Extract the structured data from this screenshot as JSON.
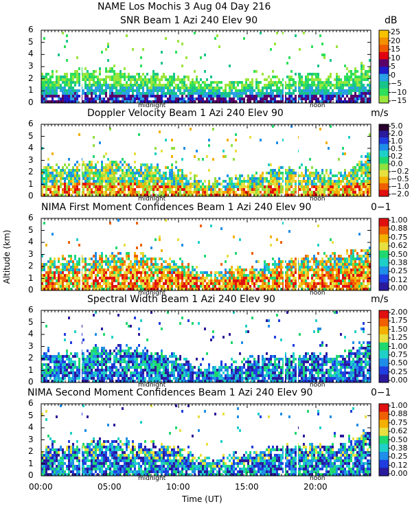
{
  "header": {
    "title": "NAME Los Mochis     3 Aug 04 Day 216"
  },
  "axes": {
    "ylabel": "Altitude (km)",
    "xlabel": "Time (UT)",
    "x_ticks": [
      "00:00",
      "05:00",
      "10:00",
      "15:00",
      "20:00"
    ],
    "y_ticks": [
      "0",
      "1",
      "2",
      "3",
      "4",
      "5",
      "6"
    ],
    "midnight_label": "midnight",
    "noon_label": "noon"
  },
  "chart_data": [
    {
      "type": "heatmap",
      "title": "SNR Beam 1 Azi 240 Elev 90",
      "unit": "dB",
      "xlabel": "",
      "ylabel": "Altitude (km)",
      "xlim": [
        0,
        24
      ],
      "ylim": [
        0,
        6
      ],
      "colorbar_labels": [
        "25",
        "20",
        "15",
        "10",
        "5",
        "0",
        "−5",
        "−10",
        "−15"
      ],
      "colorbar_colors": [
        "#f7c200",
        "#f29000",
        "#ee5a00",
        "#e00010",
        "#5b0068",
        "#1c1cc8",
        "#2aa0e6",
        "#18c48a",
        "#2ee05a",
        "#9be63c"
      ],
      "profile": {
        "top_km": [
          2.3,
          2.6,
          2.6,
          2.4,
          2.1,
          1.9,
          1.6,
          2.0,
          2.3,
          2.1,
          3.4
        ],
        "dominant": "low-bottom-high"
      }
    },
    {
      "type": "heatmap",
      "title": "Doppler Velocity Beam 1 Azi 240 Elev 90",
      "unit": "m/s",
      "xlabel": "",
      "ylabel": "Altitude (km)",
      "xlim": [
        0,
        24
      ],
      "ylim": [
        0,
        6
      ],
      "colorbar_labels": [
        "5.0",
        "2.0",
        "1.0",
        "0.5",
        "0.2",
        "0.0",
        "−0.2",
        "−0.5",
        "−1.0",
        "−2.0"
      ],
      "colorbar_colors": [
        "#2a0030",
        "#2a1a9c",
        "#1f3ee0",
        "#1f8ee8",
        "#1fd0c8",
        "#20d870",
        "#90e040",
        "#e8e040",
        "#f4b000",
        "#f06000",
        "#e01010"
      ],
      "profile": {
        "top_km": [
          2.4,
          2.6,
          2.9,
          2.7,
          2.2,
          1.2,
          1.6,
          2.2,
          2.3,
          2.0,
          3.5
        ],
        "dominant": "warm"
      }
    },
    {
      "type": "heatmap",
      "title": "NIMA First Moment Confidences Beam 1 Azi 240 Elev 90",
      "unit": "0−1",
      "xlabel": "",
      "ylabel": "Altitude (km)",
      "xlim": [
        0,
        24
      ],
      "ylim": [
        0,
        6
      ],
      "colorbar_labels": [
        "1.00",
        "0.88",
        "0.75",
        "0.62",
        "0.50",
        "0.38",
        "0.25",
        "0.12",
        "0.00"
      ],
      "colorbar_colors": [
        "#e01010",
        "#f06000",
        "#f4b000",
        "#e8e040",
        "#20d870",
        "#1fd0c8",
        "#1f8ee8",
        "#1f3ee0",
        "#2a1a9c"
      ],
      "profile": {
        "top_km": [
          2.4,
          2.6,
          3.0,
          2.9,
          2.4,
          1.3,
          1.8,
          2.4,
          2.7,
          2.9,
          3.6
        ],
        "dominant": "warm-striped"
      }
    },
    {
      "type": "heatmap",
      "title": "Spectral Width Beam 1 Azi 240 Elev 90",
      "unit": "m/s",
      "xlabel": "",
      "ylabel": "Altitude (km)",
      "xlim": [
        0,
        24
      ],
      "ylim": [
        0,
        6
      ],
      "colorbar_labels": [
        "2.00",
        "1.75",
        "1.50",
        "1.25",
        "1.00",
        "0.75",
        "0.50",
        "0.25",
        "0.00"
      ],
      "colorbar_colors": [
        "#e01010",
        "#f06000",
        "#f4b000",
        "#e8e040",
        "#20d870",
        "#1fd0c8",
        "#1f8ee8",
        "#1f3ee0",
        "#2a1a9c"
      ],
      "profile": {
        "top_km": [
          2.3,
          2.5,
          2.9,
          2.7,
          2.2,
          1.2,
          1.7,
          2.2,
          2.3,
          2.1,
          3.6
        ],
        "dominant": "cool"
      }
    },
    {
      "type": "heatmap",
      "title": "NIMA Second Moment Confidences Beam 1 Azi 240 Elev 90",
      "unit": "0−1",
      "xlabel": "Time (UT)",
      "ylabel": "Altitude (km)",
      "xlim": [
        0,
        24
      ],
      "ylim": [
        0,
        6
      ],
      "colorbar_labels": [
        "1.00",
        "0.88",
        "0.75",
        "0.62",
        "0.50",
        "0.38",
        "0.25",
        "0.12",
        "0.00"
      ],
      "colorbar_colors": [
        "#e01010",
        "#f06000",
        "#f4b000",
        "#e8e040",
        "#20d870",
        "#1fd0c8",
        "#1f8ee8",
        "#1f3ee0",
        "#2a1a9c"
      ],
      "profile": {
        "top_km": [
          2.3,
          2.6,
          3.0,
          2.8,
          2.3,
          1.3,
          1.7,
          2.3,
          2.5,
          2.6,
          3.8
        ],
        "dominant": "cool-striped"
      }
    }
  ]
}
